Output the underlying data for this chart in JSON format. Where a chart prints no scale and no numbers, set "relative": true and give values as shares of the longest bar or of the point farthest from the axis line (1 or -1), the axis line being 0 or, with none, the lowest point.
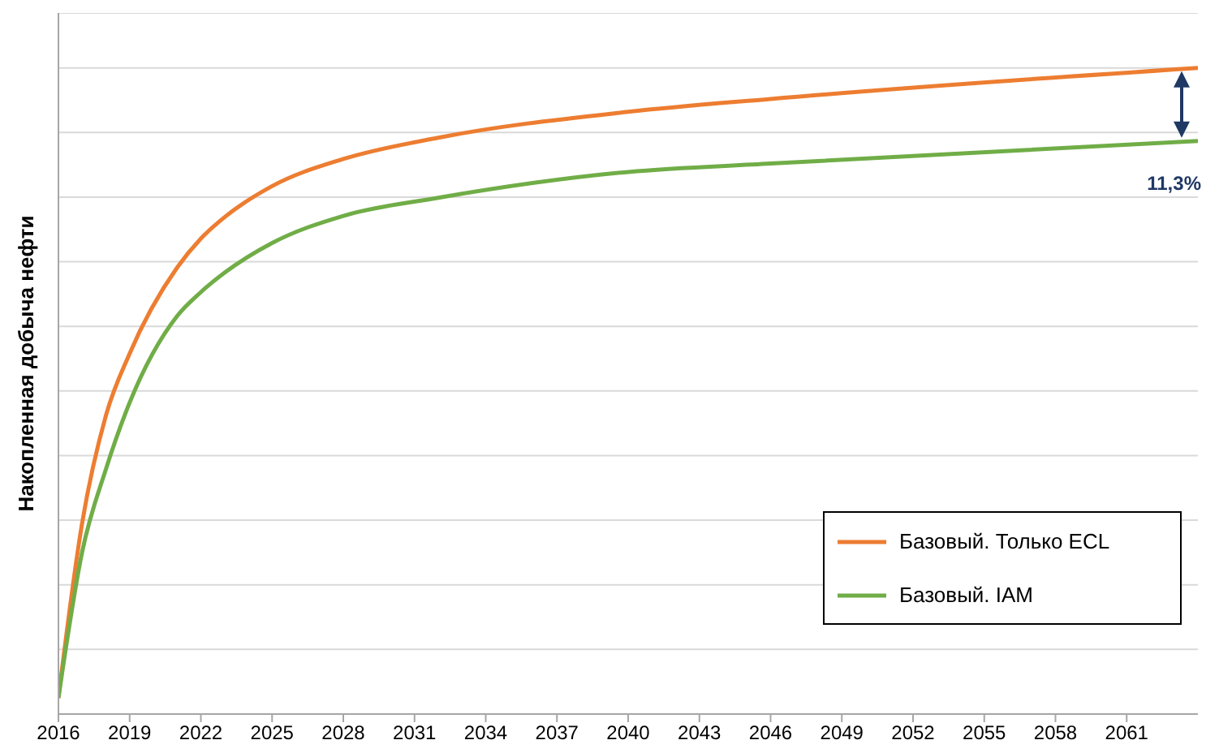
{
  "chart_data": {
    "type": "line",
    "relative": true,
    "ylabel": "Накопленная добыча нефти",
    "x": [
      2016,
      2017,
      2018,
      2019,
      2021,
      2022,
      2023,
      2025,
      2028,
      2032,
      2040,
      2046,
      2064
    ],
    "xlim": [
      2016,
      2064
    ],
    "xticks": [
      2016,
      2019,
      2022,
      2025,
      2028,
      2031,
      2034,
      2037,
      2040,
      2043,
      2046,
      2049,
      2052,
      2055,
      2058,
      2061
    ],
    "series": [
      {
        "name": "Базовый. Только ECL",
        "color": "#ed7d31",
        "values": [
          0.025,
          0.296,
          0.462,
          0.558,
          0.691,
          0.736,
          0.769,
          0.817,
          0.859,
          0.892,
          0.932,
          0.952,
          1
        ]
      },
      {
        "name": "Базовый. IAM",
        "color": "#70ad47",
        "values": [
          0.025,
          0.251,
          0.379,
          0.482,
          0.616,
          0.653,
          0.683,
          0.729,
          0.771,
          0.799,
          0.839,
          0.852,
          0.887
        ]
      }
    ],
    "annotations": [
      {
        "text": "11,3%",
        "x": 2064,
        "y": 0.887
      }
    ],
    "grid": "y",
    "legend": "bottom right",
    "marker": "none",
    "line_style": "solid"
  }
}
